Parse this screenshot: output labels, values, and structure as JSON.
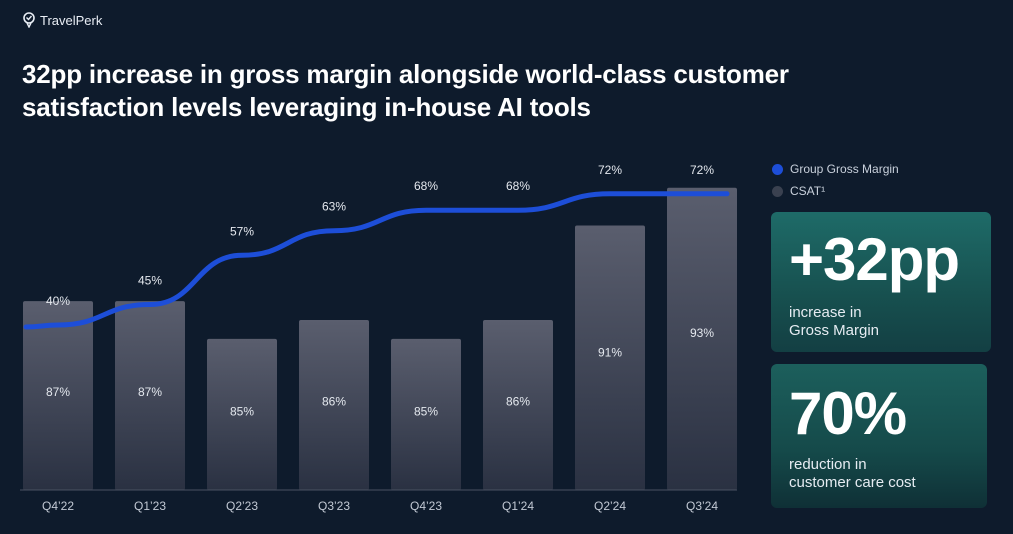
{
  "brand": {
    "name": "TravelPerk"
  },
  "title": {
    "line1": "32pp increase in gross margin alongside world-class customer",
    "line2": "satisfaction levels leveraging in-house AI tools"
  },
  "colors": {
    "background": "#0e1b2c",
    "line": "#1d4ed8",
    "bar_top": "#5a5e6e",
    "bar_bottom": "#2a3142",
    "legend_csat": "#3a4150"
  },
  "legend": {
    "margin_label": "Group Gross Margin",
    "csat_label": "CSAT¹"
  },
  "cards": {
    "margin": {
      "value": "+32pp",
      "line1": "increase in",
      "line2": "Gross Margin"
    },
    "cost": {
      "value": "70%",
      "line1": "reduction in",
      "line2": "customer care cost"
    }
  },
  "chart_data": {
    "type": "bar",
    "categories": [
      "Q4’22",
      "Q1’23",
      "Q2’23",
      "Q3’23",
      "Q4’23",
      "Q1’24",
      "Q2’24",
      "Q3’24"
    ],
    "series": [
      {
        "name": "CSAT¹",
        "type": "bar",
        "values": [
          87,
          87,
          85,
          86,
          85,
          86,
          91,
          93
        ],
        "labels": [
          "87%",
          "87%",
          "85%",
          "86%",
          "85%",
          "86%",
          "91%",
          "93%"
        ]
      },
      {
        "name": "Group Gross Margin",
        "type": "line",
        "values": [
          40,
          45,
          57,
          63,
          68,
          68,
          72,
          72
        ],
        "labels": [
          "40%",
          "45%",
          "57%",
          "63%",
          "68%",
          "68%",
          "72%",
          "72%"
        ]
      }
    ],
    "bar_ylim": [
      77,
      95
    ],
    "line_ylim": [
      0,
      100
    ],
    "legend_position": "top-right"
  }
}
